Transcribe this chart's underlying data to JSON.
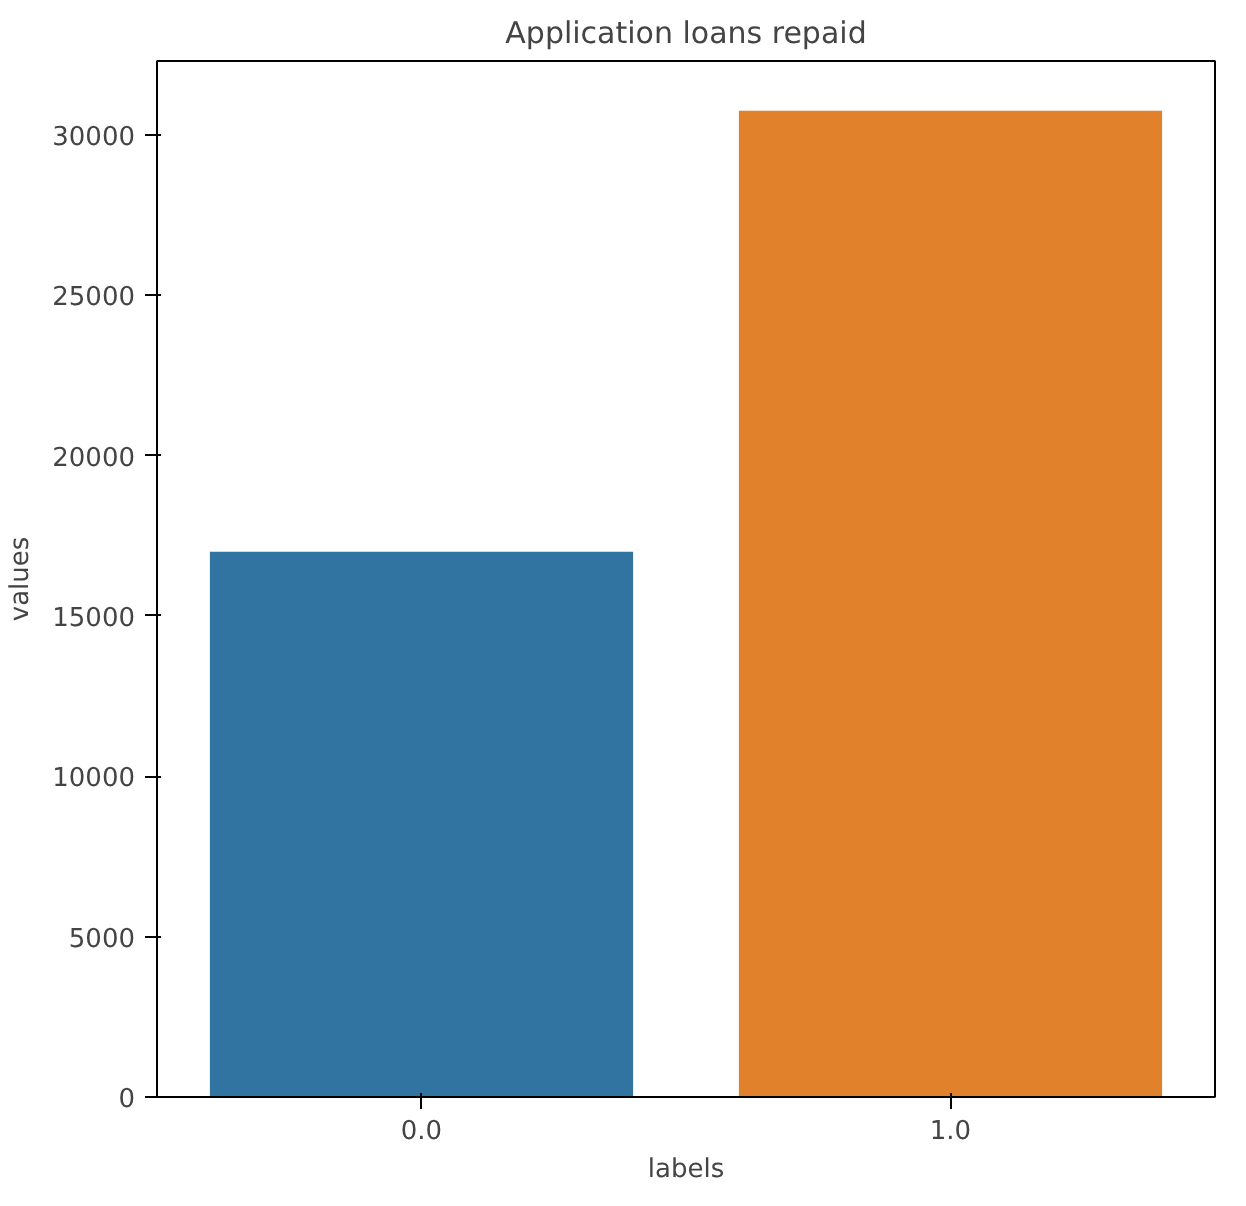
{
  "chart_data": {
    "type": "bar",
    "title": "Application loans repaid",
    "xlabel": "labels",
    "ylabel": "values",
    "categories": [
      "0.0",
      "1.0"
    ],
    "values": [
      17000,
      30750
    ],
    "colors": [
      "#3274a1",
      "#e1812c"
    ],
    "ylim": [
      0,
      32300
    ],
    "yticks": [
      0,
      5000,
      10000,
      15000,
      20000,
      25000,
      30000
    ],
    "grid": false
  }
}
